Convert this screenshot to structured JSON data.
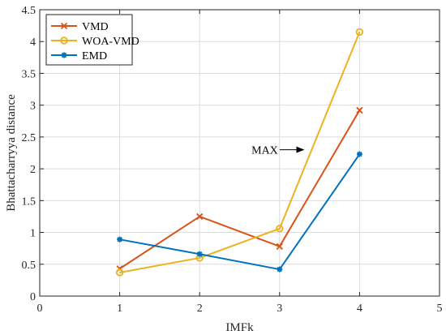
{
  "chart_data": {
    "type": "line",
    "xlabel": "IMFk",
    "ylabel": "Bhattacharryya distance",
    "xlim": [
      0,
      5
    ],
    "ylim": [
      0,
      4.5
    ],
    "xticks": [
      "0",
      "1",
      "2",
      "3",
      "4",
      "5"
    ],
    "yticks": [
      "0",
      "0.5",
      "1",
      "1.5",
      "2",
      "2.5",
      "3",
      "3.5",
      "4",
      "4.5"
    ],
    "grid": true,
    "legend_position": "top-left",
    "x": [
      1,
      2,
      3,
      4
    ],
    "series": [
      {
        "name": "VMD",
        "marker": "x",
        "color": "#D95319",
        "values": [
          0.43,
          1.25,
          0.78,
          2.92
        ]
      },
      {
        "name": "WOA-VMD",
        "marker": "circle",
        "color": "#EDB120",
        "values": [
          0.37,
          0.6,
          1.06,
          4.15
        ]
      },
      {
        "name": "EMD",
        "marker": "asterisk",
        "color": "#0072BD",
        "values": [
          0.89,
          0.66,
          0.42,
          2.23
        ]
      }
    ],
    "annotations": [
      {
        "text": "MAX",
        "arrow_from": [
          3.0,
          2.3
        ],
        "arrow_to": [
          3.3,
          2.3
        ]
      }
    ]
  }
}
